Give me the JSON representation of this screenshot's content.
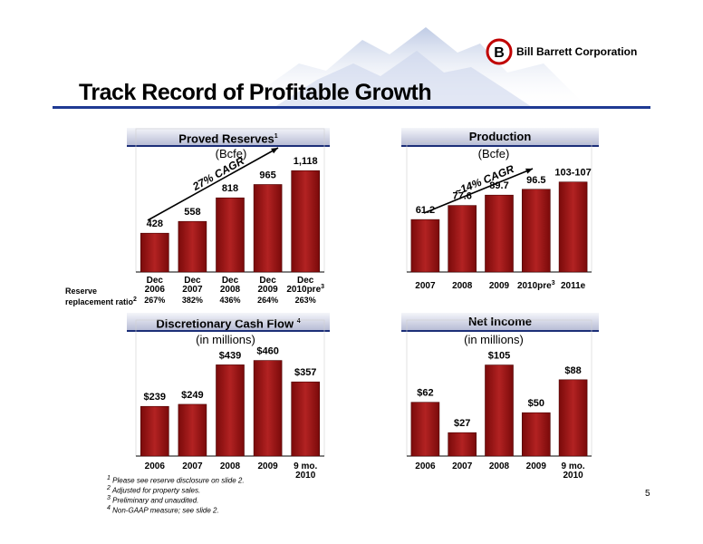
{
  "header": {
    "title": "Track Record of Profitable Growth",
    "logo_text": "Bill Barrett Corporation",
    "logo_letter": "B"
  },
  "page_number": "5",
  "colors": {
    "bar": "#7a0a0a",
    "bar_light": "#b22222",
    "accent": "#1f3a93"
  },
  "reserve_ratio": {
    "label_line1": "Reserve",
    "label_line2": "replacement ratio",
    "label_sup": "2",
    "values": [
      "267%",
      "382%",
      "436%",
      "264%",
      "263%"
    ]
  },
  "footnotes": [
    {
      "sup": "1",
      "text": " Please see reserve disclosure on slide 2."
    },
    {
      "sup": "2",
      "text": " Adjusted for property sales."
    },
    {
      "sup": "3",
      "text": " Preliminary and unaudited."
    },
    {
      "sup": "4",
      "text": " Non-GAAP measure; see slide 2."
    }
  ],
  "chart_data": [
    {
      "type": "bar",
      "title": "Proved Reserves",
      "title_sup": "1",
      "subtitle": "(Bcfe)",
      "categories": [
        [
          "Dec",
          "2006"
        ],
        [
          "Dec",
          "2007"
        ],
        [
          "Dec",
          "2008"
        ],
        [
          "Dec",
          "2009"
        ],
        [
          "Dec",
          "2010pre",
          "3"
        ]
      ],
      "values": [
        428,
        558,
        818,
        965,
        1118
      ],
      "labels": [
        "428",
        "558",
        "818",
        "965",
        "1,118"
      ],
      "ylim": [
        0,
        1180
      ],
      "annotation": "27% CAGR"
    },
    {
      "type": "bar",
      "title": "Production",
      "title_sup": "",
      "subtitle": "(Bcfe)",
      "categories": [
        [
          "2007"
        ],
        [
          "2008"
        ],
        [
          "2009"
        ],
        [
          "2010pre",
          "3"
        ],
        [
          "2011e"
        ]
      ],
      "values": [
        61.2,
        77.6,
        89.7,
        96.5,
        105
      ],
      "labels": [
        "61.2",
        "77.6",
        "89.7",
        "96.5",
        "103-107"
      ],
      "ylim": [
        0,
        110
      ],
      "annotation": "~14% CAGR"
    },
    {
      "type": "bar",
      "title": "Discretionary Cash Flow",
      "title_sup": "4",
      "subtitle": "(in millions)",
      "categories": [
        [
          "2006"
        ],
        [
          "2007"
        ],
        [
          "2008"
        ],
        [
          "2009"
        ],
        [
          "9 mo.",
          "2010"
        ]
      ],
      "values": [
        239,
        249,
        439,
        460,
        357
      ],
      "labels": [
        "$239",
        "$249",
        "$439",
        "$460",
        "$357"
      ],
      "ylim": [
        0,
        480
      ]
    },
    {
      "type": "bar",
      "title": "Net Income",
      "title_sup": "",
      "subtitle": "(in millions)",
      "categories": [
        [
          "2006"
        ],
        [
          "2007"
        ],
        [
          "2008"
        ],
        [
          "2009"
        ],
        [
          "9 mo.",
          "2010"
        ]
      ],
      "values": [
        62,
        27,
        105,
        50,
        88
      ],
      "labels": [
        "$62",
        "$27",
        "$105",
        "$50",
        "$88"
      ],
      "ylim": [
        0,
        115
      ]
    }
  ]
}
